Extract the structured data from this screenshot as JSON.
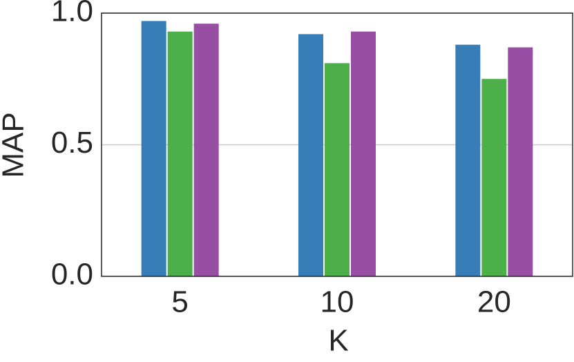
{
  "chart_data": {
    "type": "bar",
    "x_label": "K",
    "y_label": "MAP",
    "categories": [
      "5",
      "10",
      "20"
    ],
    "series": [
      {
        "color": "#377eb8",
        "values": [
          0.97,
          0.92,
          0.88
        ]
      },
      {
        "color": "#4daf4a",
        "values": [
          0.93,
          0.81,
          0.75
        ]
      },
      {
        "color": "#984ea3",
        "values": [
          0.96,
          0.93,
          0.87
        ]
      }
    ],
    "ylim": [
      0,
      1
    ],
    "yticks": [
      {
        "value": 0,
        "label": "0.0"
      },
      {
        "value": 0.5,
        "label": "0.5"
      },
      {
        "value": 1,
        "label": "1.0"
      }
    ],
    "grid": true
  }
}
